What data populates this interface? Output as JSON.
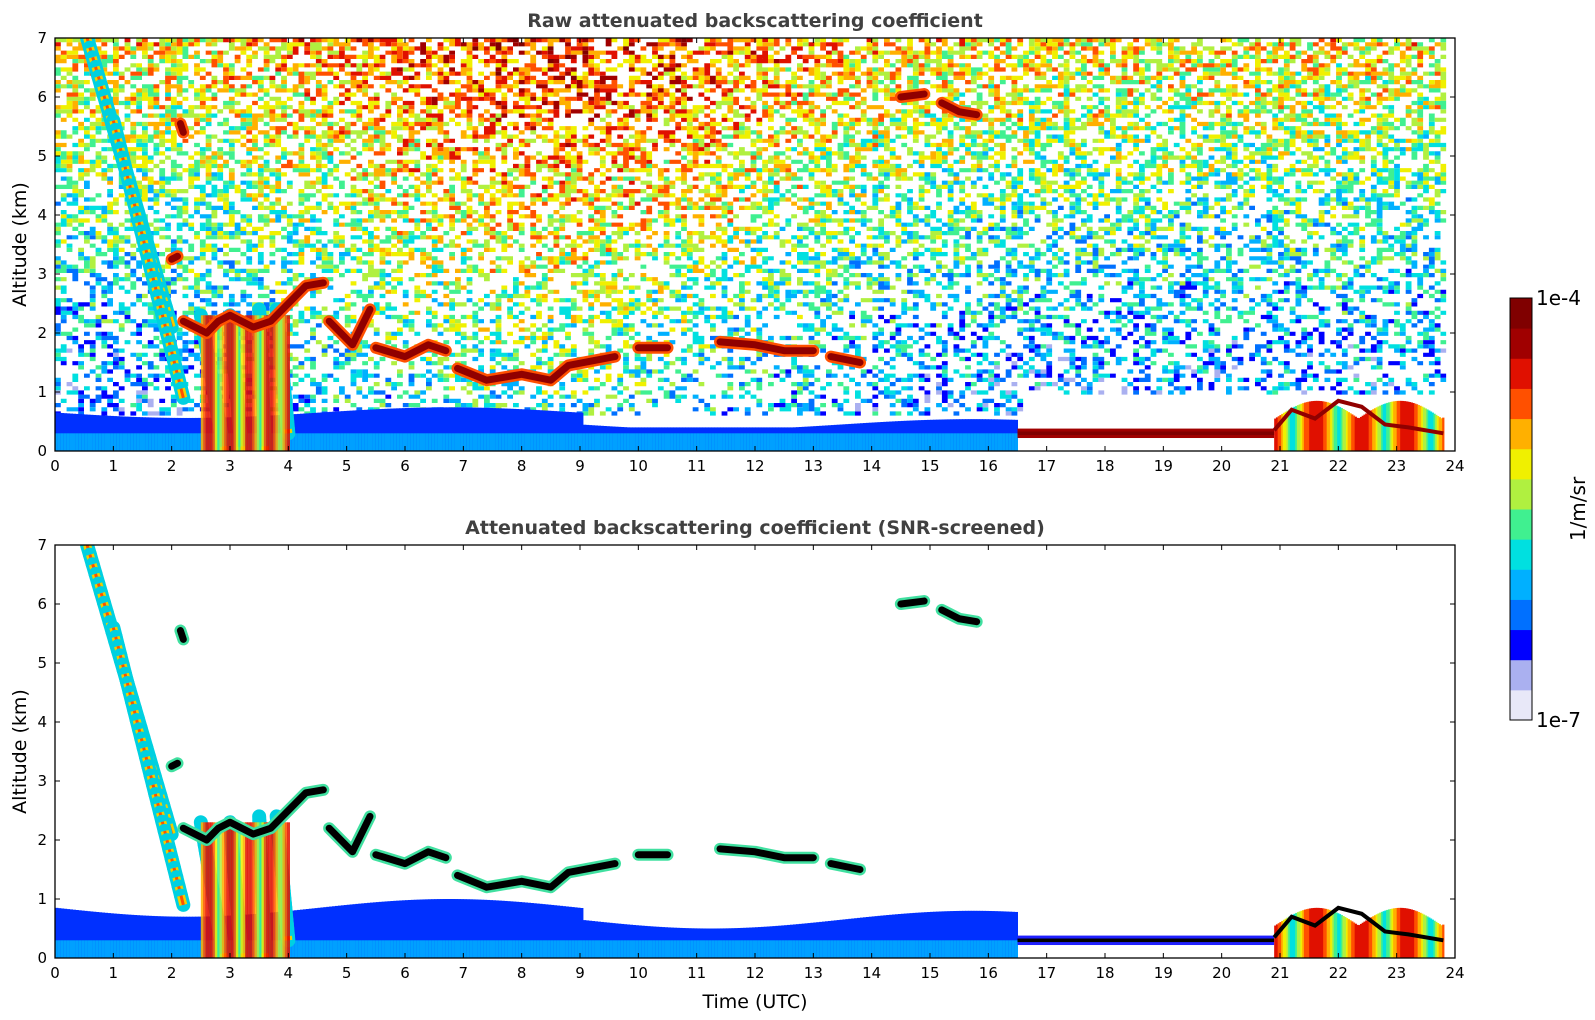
{
  "chart_data": [
    {
      "type": "heatmap",
      "title": "Raw attenuated backscattering coefficient",
      "xlabel": "",
      "ylabel": "Altitude (km)",
      "xlim": [
        0,
        24
      ],
      "ylim": [
        0,
        7
      ],
      "xticks": [
        "0",
        "1",
        "2",
        "3",
        "4",
        "5",
        "6",
        "7",
        "8",
        "9",
        "10",
        "11",
        "12",
        "13",
        "14",
        "15",
        "16",
        "17",
        "18",
        "19",
        "20",
        "21",
        "22",
        "23",
        "24"
      ],
      "yticks": [
        "0",
        "1",
        "2",
        "3",
        "4",
        "5",
        "6",
        "7"
      ],
      "data_end_hour": 23.85,
      "features": [
        {
          "kind": "boundary-layer",
          "t": [
            0,
            16.5
          ],
          "z": [
            0,
            0.65
          ]
        },
        {
          "kind": "cloud-layer",
          "t": [
            16.5,
            20.9
          ],
          "z": [
            0.25,
            0.35
          ]
        },
        {
          "kind": "cloud-layer",
          "t": [
            4.7,
            13.8
          ],
          "z": [
            1.2,
            2.0
          ]
        },
        {
          "kind": "cloud-layer",
          "t": [
            2.2,
            4.6
          ],
          "z": [
            2.0,
            2.9
          ]
        },
        {
          "kind": "cloud-layer",
          "t": [
            14.5,
            15.8
          ],
          "z": [
            5.7,
            6.1
          ]
        },
        {
          "kind": "precipitation",
          "t": [
            0.5,
            4.0
          ],
          "z": [
            0,
            7
          ]
        },
        {
          "kind": "precipitation",
          "t": [
            21,
            23.8
          ],
          "z": [
            0,
            0.9
          ]
        },
        {
          "kind": "noise",
          "t": [
            0,
            23.85
          ],
          "z": [
            0.6,
            7
          ]
        }
      ]
    },
    {
      "type": "heatmap",
      "title": "Attenuated backscattering coefficient (SNR-screened)",
      "xlabel": "Time (UTC)",
      "ylabel": "Altitude (km)",
      "xlim": [
        0,
        24
      ],
      "ylim": [
        0,
        7
      ],
      "xticks": [
        "0",
        "1",
        "2",
        "3",
        "4",
        "5",
        "6",
        "7",
        "8",
        "9",
        "10",
        "11",
        "12",
        "13",
        "14",
        "15",
        "16",
        "17",
        "18",
        "19",
        "20",
        "21",
        "22",
        "23",
        "24"
      ],
      "yticks": [
        "0",
        "1",
        "2",
        "3",
        "4",
        "5",
        "6",
        "7"
      ],
      "data_end_hour": 23.85,
      "features": [
        {
          "kind": "boundary-layer",
          "t": [
            0,
            16.5
          ],
          "z": [
            0,
            0.85
          ]
        },
        {
          "kind": "cloud-layer",
          "t": [
            16.5,
            20.9
          ],
          "z": [
            0.25,
            0.35
          ]
        },
        {
          "kind": "cloud-layer",
          "t": [
            4.7,
            13.8
          ],
          "z": [
            1.2,
            2.0
          ]
        },
        {
          "kind": "cloud-layer",
          "t": [
            2.2,
            4.6
          ],
          "z": [
            2.0,
            2.9
          ]
        },
        {
          "kind": "cloud-layer",
          "t": [
            14.5,
            15.8
          ],
          "z": [
            5.7,
            6.1
          ]
        },
        {
          "kind": "precipitation",
          "t": [
            0.5,
            4.0
          ],
          "z": [
            0,
            7
          ]
        },
        {
          "kind": "precipitation",
          "t": [
            21,
            23.8
          ],
          "z": [
            0,
            0.9
          ]
        }
      ]
    }
  ],
  "colorbar": {
    "label": "1/m/sr",
    "max_label": "1e-4",
    "min_label": "1e-7",
    "colors": [
      "#e8e8f8",
      "#aab0f0",
      "#0000ff",
      "#0070ff",
      "#00b0ff",
      "#00e0e0",
      "#40f090",
      "#b0f040",
      "#f0f000",
      "#ffb000",
      "#ff5000",
      "#e01000",
      "#a00000",
      "#800000"
    ]
  }
}
